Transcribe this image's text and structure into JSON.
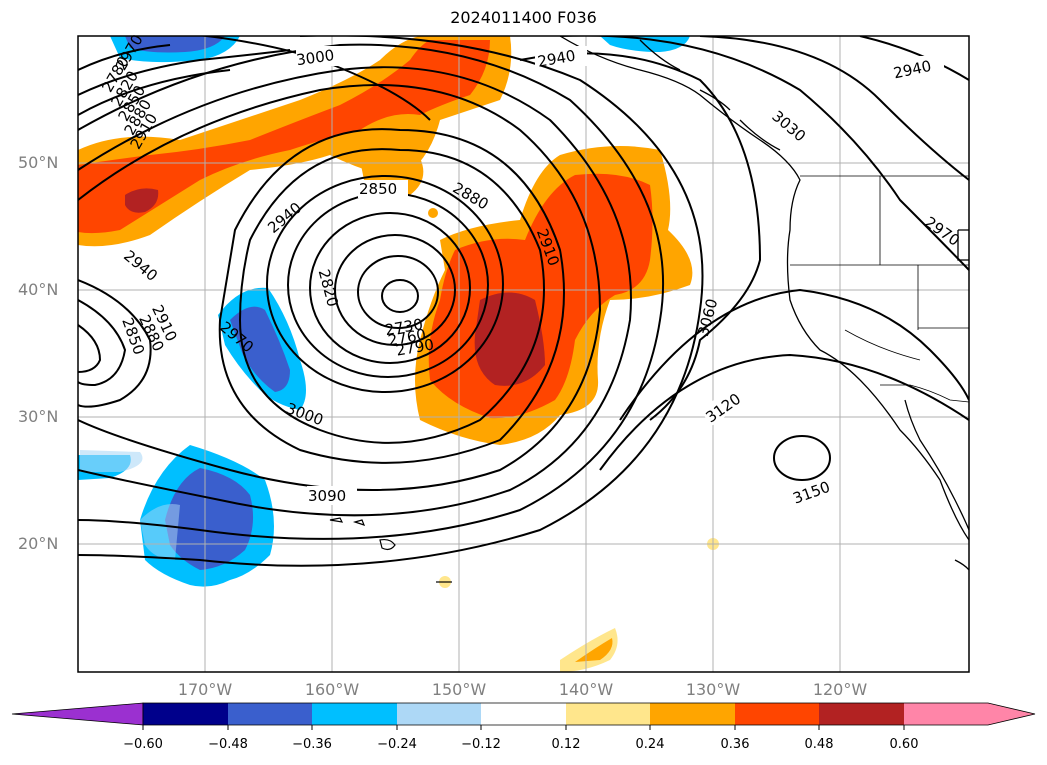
{
  "title": "2024011400 F036",
  "lat_labels": [
    "50°N",
    "40°N",
    "30°N",
    "20°N"
  ],
  "lon_labels": [
    "170°W",
    "160°W",
    "150°W",
    "140°W",
    "130°W",
    "120°W"
  ],
  "contour_labels": [
    "3000",
    "2940",
    "2940",
    "3030",
    "2850",
    "2880",
    "2940",
    "2910",
    "2820",
    "2970",
    "2940",
    "2910",
    "2880",
    "2850",
    "2970",
    "2730",
    "2760",
    "2790",
    "3060",
    "3000",
    "3120",
    "3090",
    "3150",
    "2780",
    "2820",
    "2850",
    "2880",
    "2910",
    "2970"
  ],
  "colorbar": {
    "ticks": [
      "−0.60",
      "−0.48",
      "−0.36",
      "−0.24",
      "−0.12",
      "0.12",
      "0.24",
      "0.36",
      "0.48",
      "0.60"
    ],
    "colors": [
      "#9b30d0",
      "#00008b",
      "#3a5fcd",
      "#00bfff",
      "#add8f6",
      "#ffffff",
      "#ffe68c",
      "#ffa500",
      "#ff4500",
      "#b22222",
      "#ff85a8"
    ]
  }
}
